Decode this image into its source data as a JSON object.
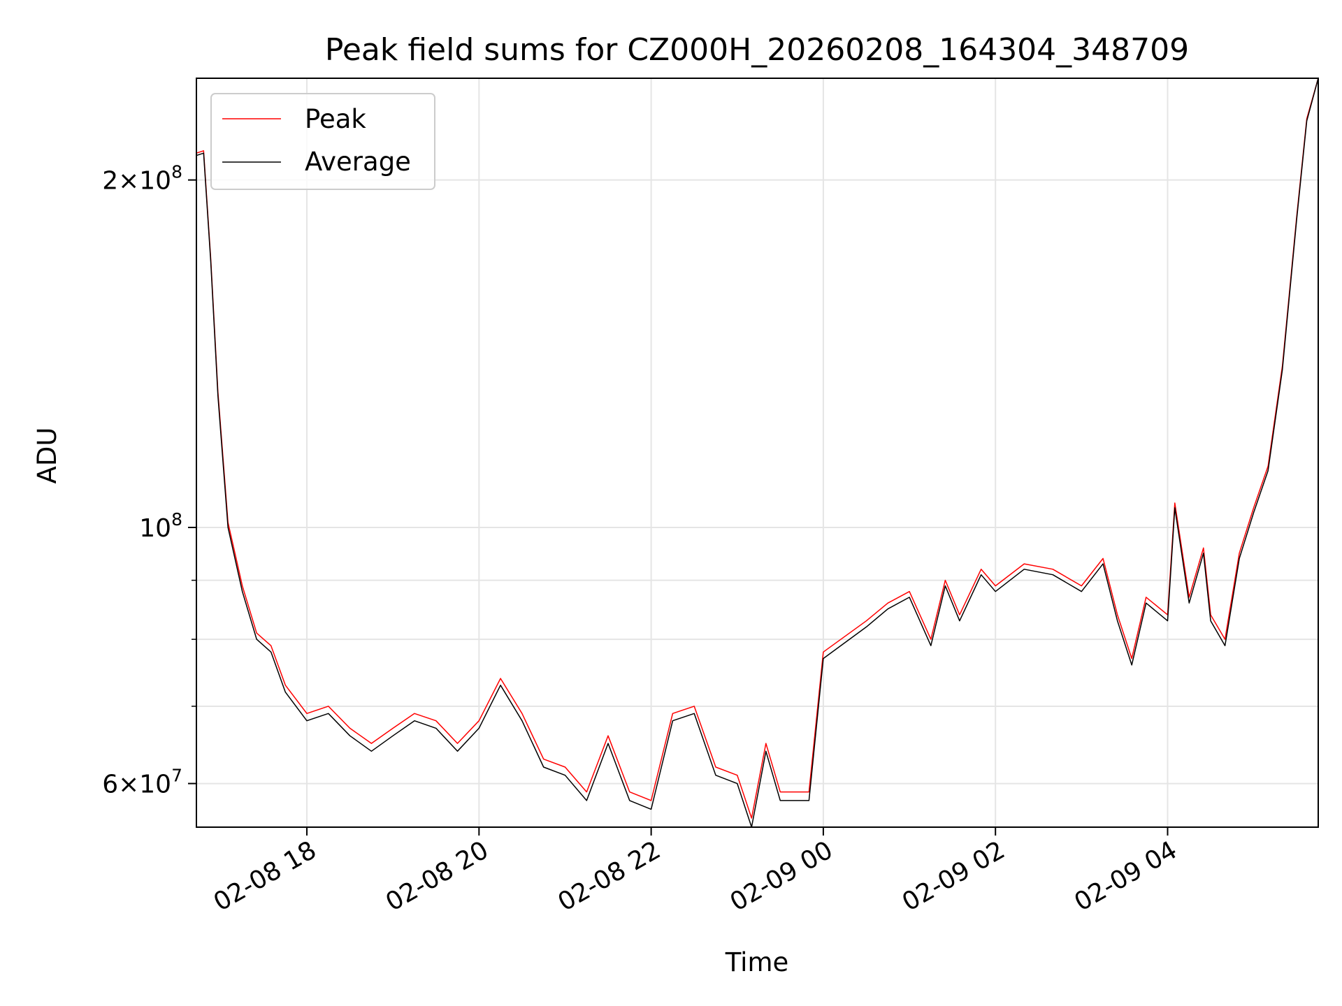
{
  "chart_data": {
    "type": "line",
    "title": "Peak field sums for CZ000H_20260208_164304_348709",
    "xlabel": "Time",
    "ylabel": "ADU",
    "yscale": "log",
    "ylim": [
      55000000,
      245000000
    ],
    "xlim": [
      "2026-02-08 16:43",
      "2026-02-09 05:45"
    ],
    "grid": true,
    "legend": "top-left",
    "x_ticks": [
      {
        "value": "2026-02-08 18:00",
        "label": "02-08 18"
      },
      {
        "value": "2026-02-08 20:00",
        "label": "02-08 20"
      },
      {
        "value": "2026-02-08 22:00",
        "label": "02-08 22"
      },
      {
        "value": "2026-02-09 00:00",
        "label": "02-09 00"
      },
      {
        "value": "2026-02-09 02:00",
        "label": "02-09 02"
      },
      {
        "value": "2026-02-09 04:00",
        "label": "02-09 04"
      }
    ],
    "y_ticks_major": [
      {
        "value": 100000000,
        "base": "10",
        "exp": "8",
        "mant": ""
      },
      {
        "value": 200000000,
        "base": "10",
        "exp": "8",
        "mant": "2"
      },
      {
        "value": 60000000,
        "base": "10",
        "exp": "7",
        "mant": "6"
      }
    ],
    "y_ticks_minor": [
      70000000,
      80000000,
      90000000
    ],
    "series": [
      {
        "name": "Peak",
        "color": "#ff0000"
      },
      {
        "name": "Average",
        "color": "#000000"
      }
    ],
    "x": [
      "2026-02-08 16:43",
      "2026-02-08 16:48",
      "2026-02-08 16:53",
      "2026-02-08 16:58",
      "2026-02-08 17:05",
      "2026-02-08 17:15",
      "2026-02-08 17:25",
      "2026-02-08 17:35",
      "2026-02-08 17:45",
      "2026-02-08 18:00",
      "2026-02-08 18:15",
      "2026-02-08 18:30",
      "2026-02-08 18:45",
      "2026-02-08 19:00",
      "2026-02-08 19:15",
      "2026-02-08 19:30",
      "2026-02-08 19:45",
      "2026-02-08 20:00",
      "2026-02-08 20:15",
      "2026-02-08 20:30",
      "2026-02-08 20:45",
      "2026-02-08 21:00",
      "2026-02-08 21:15",
      "2026-02-08 21:30",
      "2026-02-08 21:45",
      "2026-02-08 22:00",
      "2026-02-08 22:15",
      "2026-02-08 22:30",
      "2026-02-08 22:45",
      "2026-02-08 23:00",
      "2026-02-08 23:10",
      "2026-02-08 23:20",
      "2026-02-08 23:30",
      "2026-02-08 23:40",
      "2026-02-08 23:50",
      "2026-02-09 00:00",
      "2026-02-09 00:30",
      "2026-02-09 00:45",
      "2026-02-09 01:00",
      "2026-02-09 01:15",
      "2026-02-09 01:25",
      "2026-02-09 01:35",
      "2026-02-09 01:50",
      "2026-02-09 02:00",
      "2026-02-09 02:20",
      "2026-02-09 02:40",
      "2026-02-09 03:00",
      "2026-02-09 03:15",
      "2026-02-09 03:25",
      "2026-02-09 03:35",
      "2026-02-09 03:45",
      "2026-02-09 04:00",
      "2026-02-09 04:05",
      "2026-02-09 04:15",
      "2026-02-09 04:25",
      "2026-02-09 04:30",
      "2026-02-09 04:40",
      "2026-02-09 04:50",
      "2026-02-09 05:00",
      "2026-02-09 05:10",
      "2026-02-09 05:20",
      "2026-02-09 05:30",
      "2026-02-09 05:37",
      "2026-02-09 05:45"
    ],
    "average": [
      210,
      211,
      170,
      130,
      100,
      88,
      80,
      78,
      72,
      68,
      69,
      66,
      64,
      66,
      68,
      67,
      64,
      67,
      73,
      68,
      62,
      61,
      58,
      65,
      58,
      57,
      68,
      69,
      61,
      60,
      55,
      64,
      58,
      58,
      58,
      77,
      82,
      85,
      87,
      79,
      89,
      83,
      91,
      88,
      92,
      91,
      88,
      93,
      83,
      76,
      86,
      83,
      104,
      86,
      95,
      83,
      79,
      94,
      103,
      112,
      137,
      185,
      225,
      245
    ],
    "peak": [
      211,
      212,
      171,
      131,
      101,
      89,
      81,
      79,
      73,
      69,
      70,
      67,
      65,
      67,
      69,
      68,
      65,
      68,
      74,
      69,
      63,
      62,
      59,
      66,
      59,
      58,
      69,
      70,
      62,
      61,
      56,
      65,
      59,
      59,
      59,
      78,
      83,
      86,
      88,
      80,
      90,
      84,
      92,
      89,
      93,
      92,
      89,
      94,
      84,
      77,
      87,
      84,
      105,
      87,
      96,
      84,
      80,
      95,
      104,
      113,
      138,
      186,
      226,
      245
    ]
  }
}
